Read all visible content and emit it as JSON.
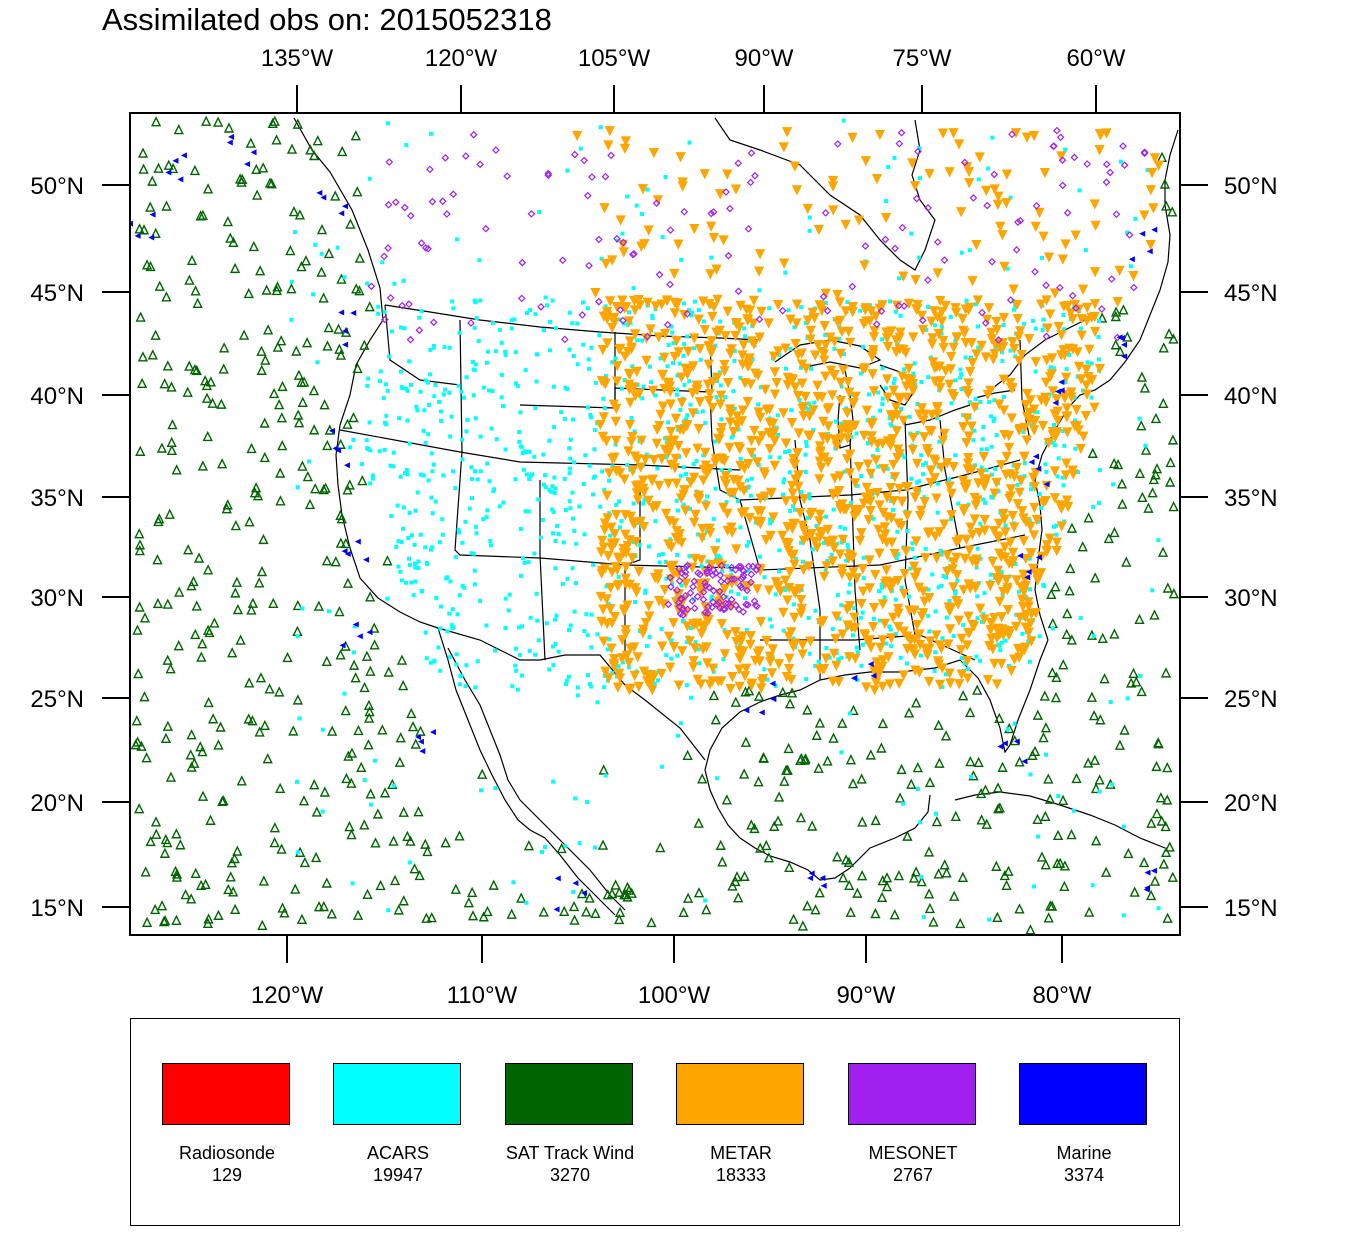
{
  "title": "Assimilated obs on: 2015052318",
  "top_axis_labels": [
    "135°W",
    "120°W",
    "105°W",
    "90°W",
    "75°W",
    "60°W"
  ],
  "bottom_axis_labels": [
    "120°W",
    "110°W",
    "100°W",
    "90°W",
    "80°W"
  ],
  "lat_labels": [
    "50°N",
    "45°N",
    "40°N",
    "35°N",
    "30°N",
    "25°N",
    "20°N",
    "15°N"
  ],
  "legend": [
    {
      "name": "Radiosonde",
      "count": "129",
      "color": "#ff0000"
    },
    {
      "name": "ACARS",
      "count": "19947",
      "color": "#00ffff"
    },
    {
      "name": "SAT Track Wind",
      "count": "3270",
      "color": "#006400"
    },
    {
      "name": "METAR",
      "count": "18333",
      "color": "#ffa500"
    },
    {
      "name": "MESONET",
      "count": "2767",
      "color": "#a020f0"
    },
    {
      "name": "Marine",
      "count": "3374",
      "color": "#0000ff"
    }
  ],
  "map_extent": {
    "lon_min": -128.0,
    "lon_max": -73.3,
    "lat_min": 13.8,
    "lat_max": 54.0
  }
}
